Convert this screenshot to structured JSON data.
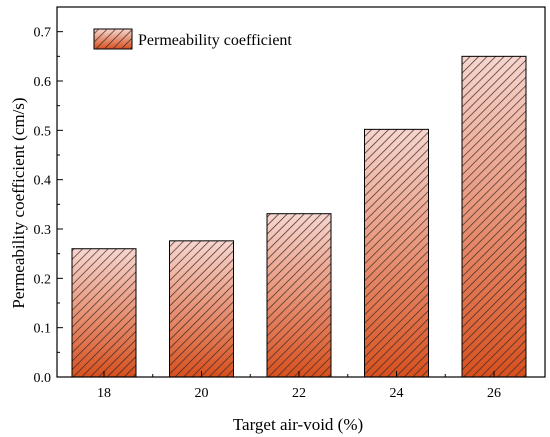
{
  "chart_data": {
    "type": "bar",
    "title": "",
    "xlabel": "Target air-void (%)",
    "ylabel": "Permeability coefficient (cm/s)",
    "categories": [
      "18",
      "20",
      "22",
      "24",
      "26"
    ],
    "series": [
      {
        "name": "Permeability coefficient",
        "values": [
          0.26,
          0.276,
          0.331,
          0.502,
          0.65
        ]
      }
    ],
    "ylim": [
      0,
      0.75
    ],
    "yticks": [
      "0.0",
      "0.1",
      "0.2",
      "0.3",
      "0.4",
      "0.5",
      "0.6",
      "0.7"
    ],
    "grid": false,
    "legend": "top-left",
    "colors": {
      "bar_top": "#f7d6cf",
      "bar_bottom": "#d8501e",
      "hatch": "#3a2a26",
      "axis": "#000000"
    }
  }
}
